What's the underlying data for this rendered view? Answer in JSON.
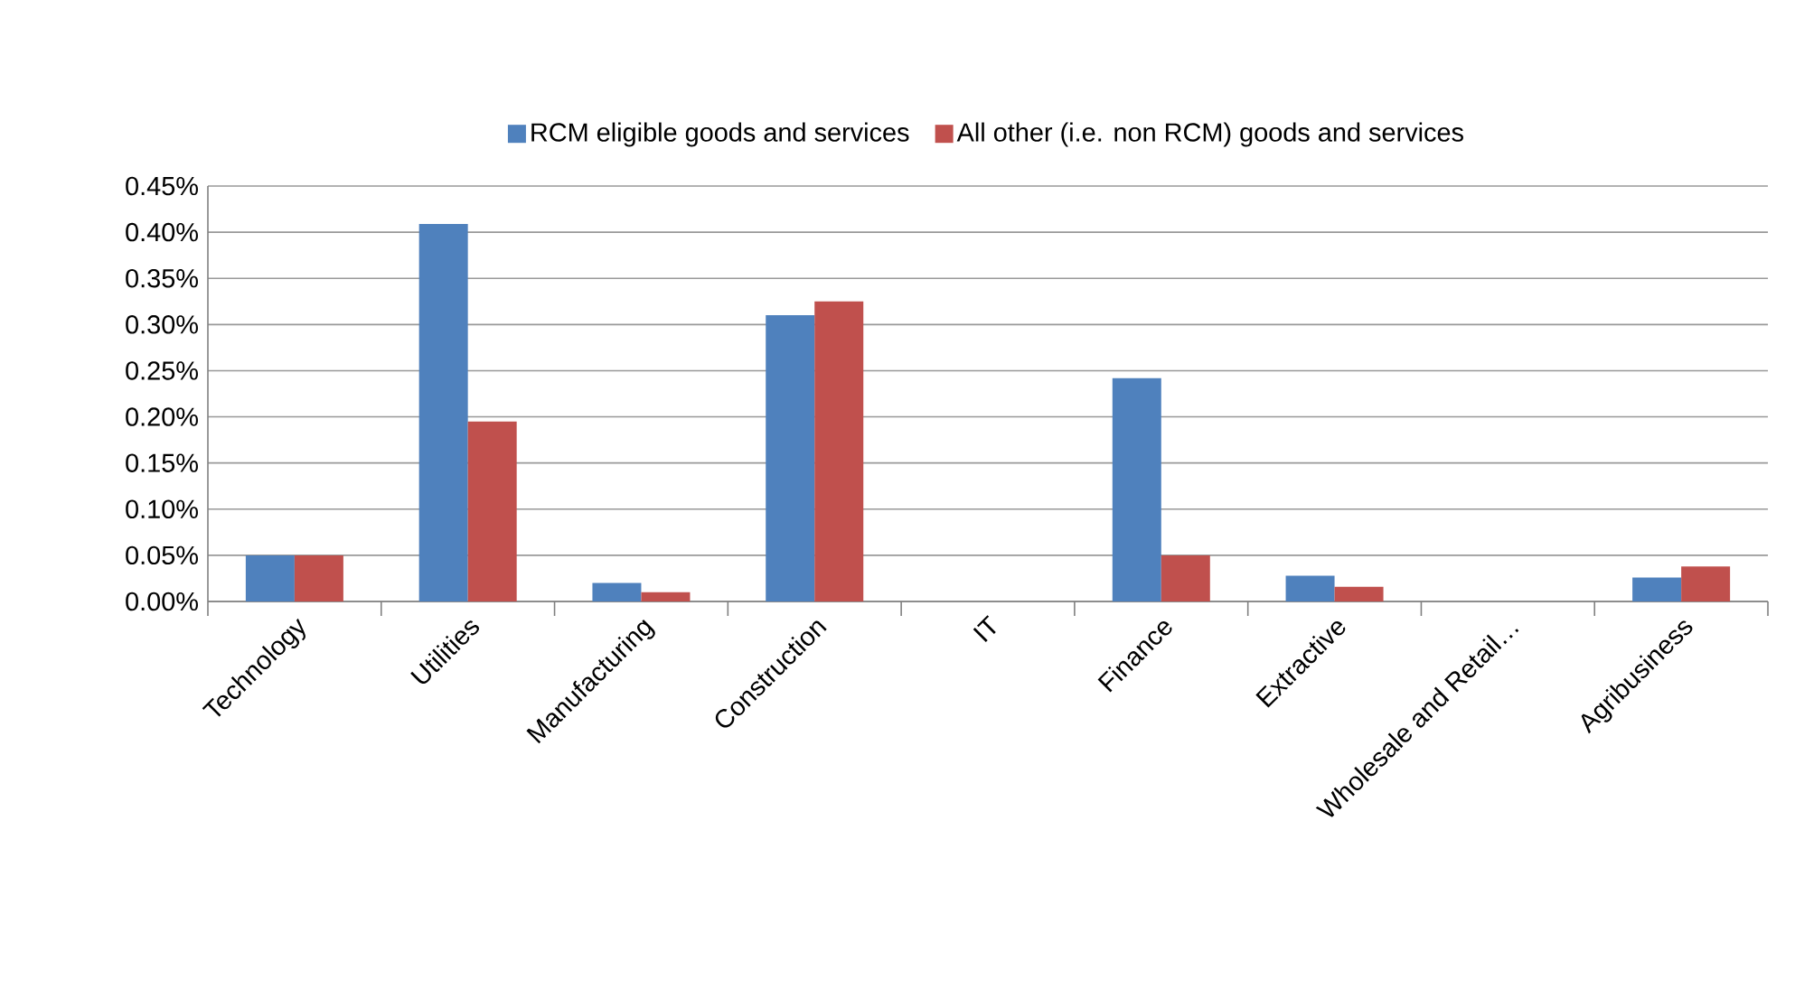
{
  "chart_data": {
    "type": "bar",
    "categories": [
      "Technology",
      "Utilities",
      "Manufacturing",
      "Construction",
      "IT",
      "Finance",
      "Extractive",
      "Wholesale and Retail…",
      "Agribusiness"
    ],
    "series": [
      {
        "name": "RCM eligible goods and services",
        "color": "#4f81bd",
        "values": [
          0.05,
          0.409,
          0.02,
          0.31,
          0,
          0.242,
          0.028,
          0,
          0.026
        ]
      },
      {
        "name": "All other (i.e. non RCM) goods and services",
        "color": "#c0504d",
        "values": [
          0.05,
          0.195,
          0.01,
          0.325,
          0,
          0.05,
          0.016,
          0,
          0.038
        ]
      }
    ],
    "ylim": [
      0,
      0.45
    ],
    "yticks": [
      {
        "value": 0,
        "label": "0.00%"
      },
      {
        "value": 0.05,
        "label": "0.05%"
      },
      {
        "value": 0.1,
        "label": "0.10%"
      },
      {
        "value": 0.15,
        "label": "0.15%"
      },
      {
        "value": 0.2,
        "label": "0.20%"
      },
      {
        "value": 0.25,
        "label": "0.25%"
      },
      {
        "value": 0.3,
        "label": "0.30%"
      },
      {
        "value": 0.35,
        "label": "0.35%"
      },
      {
        "value": 0.4,
        "label": "0.40%"
      },
      {
        "value": 0.45,
        "label": "0.45%"
      }
    ],
    "grid": "y",
    "legend": "top"
  }
}
